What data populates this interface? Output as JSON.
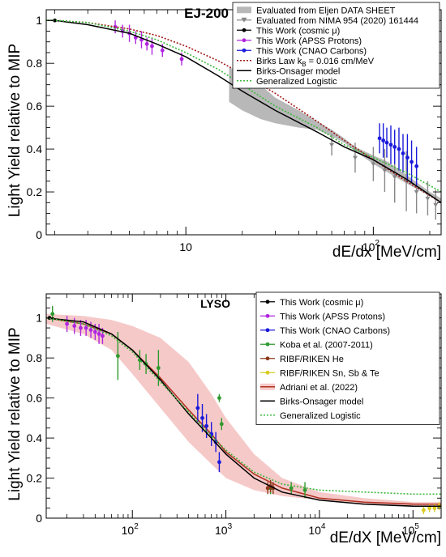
{
  "chart_data": [
    {
      "type": "line",
      "panel_tag": "EJ-200",
      "xlabel": "dE/dx [MeV/cm]",
      "ylabel": "Light Yield relative to MIP",
      "x_scale": "log",
      "xlim": [
        1.8,
        230
      ],
      "ylim": [
        0,
        1.05
      ],
      "x_ticks": [
        {
          "value": 10,
          "label": "10"
        },
        {
          "value": 100,
          "label": "10",
          "exp": "2"
        }
      ],
      "y_ticks": [
        {
          "value": 0,
          "label": "0"
        },
        {
          "value": 0.2,
          "label": "0.2"
        },
        {
          "value": 0.4,
          "label": "0.4"
        },
        {
          "value": 0.6,
          "label": "0.6"
        },
        {
          "value": 0.8,
          "label": "0.8"
        },
        {
          "value": 1,
          "label": "1"
        }
      ],
      "legend": {
        "position": "top-right",
        "entries": [
          {
            "label": "Evaluated from Eljen DATA SHEET",
            "style": "band",
            "color": "#b8b8b8"
          },
          {
            "label": "Evaluated from NIMA 954 (2020) 161444",
            "style": "triangle",
            "color": "#888888"
          },
          {
            "label": "This Work (cosmic μ)",
            "style": "marker",
            "color": "#000000"
          },
          {
            "label": "This Work (APSS Protons)",
            "style": "marker",
            "color": "#b026e0"
          },
          {
            "label": "This Work (CNAO Carbons)",
            "style": "marker",
            "color": "#1a1adb"
          },
          {
            "label": "Birks Law k",
            "sub": "B",
            "suffix": " = 0.016 cm/MeV",
            "style": "dotted",
            "color": "#a01818"
          },
          {
            "label": "Birks-Onsager model",
            "style": "line",
            "color": "#000000"
          },
          {
            "label": "Generalized Logistic",
            "style": "dotted",
            "color": "#3cb83c"
          }
        ]
      },
      "band": {
        "name": "Evaluated from Eljen DATA SHEET",
        "color": "#b8b8b8",
        "x": [
          17,
          20,
          25,
          30,
          40,
          50,
          60,
          70,
          80,
          100,
          120,
          150,
          200,
          230
        ],
        "y_low": [
          0.62,
          0.58,
          0.54,
          0.52,
          0.5,
          0.49,
          0.46,
          0.43,
          0.39,
          0.33,
          0.29,
          0.24,
          0.18,
          0.15
        ],
        "y_high": [
          0.78,
          0.76,
          0.7,
          0.64,
          0.58,
          0.53,
          0.49,
          0.45,
          0.41,
          0.37,
          0.34,
          0.28,
          0.2,
          0.17
        ]
      },
      "series": [
        {
          "name": "Evaluated from NIMA 954 (2020) 161444",
          "style": "triangles",
          "color": "#888888",
          "x": [
            60,
            80,
            100,
            115,
            130,
            150,
            170,
            195,
            215
          ],
          "y": [
            0.42,
            0.36,
            0.33,
            0.3,
            0.27,
            0.25,
            0.2,
            0.17,
            0.14
          ],
          "err": [
            0.05,
            0.07,
            0.08,
            0.1,
            0.12,
            0.14,
            0.1,
            0.08,
            0.07
          ]
        },
        {
          "name": "This Work (cosmic μ)",
          "style": "markers",
          "color": "#000000",
          "x": [
            2
          ],
          "y": [
            1.0
          ],
          "err": [
            0.005
          ]
        },
        {
          "name": "This Work (APSS Protons)",
          "style": "markers",
          "color": "#b026e0",
          "x": [
            4.2,
            4.6,
            5.0,
            5.4,
            5.8,
            6.2,
            6.6,
            7.5,
            9.5
          ],
          "y": [
            0.97,
            0.95,
            0.94,
            0.92,
            0.91,
            0.89,
            0.88,
            0.86,
            0.82
          ],
          "err": [
            0.03,
            0.03,
            0.04,
            0.03,
            0.04,
            0.03,
            0.04,
            0.03,
            0.03
          ]
        },
        {
          "name": "This Work (CNAO Carbons)",
          "style": "markers",
          "color": "#1a1adb",
          "x": [
            108,
            113,
            118,
            124,
            130,
            137,
            144,
            152,
            160,
            170
          ],
          "y": [
            0.45,
            0.44,
            0.43,
            0.42,
            0.41,
            0.4,
            0.38,
            0.36,
            0.34,
            0.32
          ],
          "err": [
            0.07,
            0.08,
            0.07,
            0.09,
            0.08,
            0.1,
            0.09,
            0.11,
            0.1,
            0.09
          ]
        },
        {
          "name": "Birks Law k",
          "style": "dotted",
          "color": "#a01818",
          "x": [
            1.8,
            2,
            3,
            5,
            7,
            10,
            15,
            20,
            30,
            50,
            70,
            100,
            150,
            230
          ],
          "y": [
            1.0,
            1.0,
            0.99,
            0.96,
            0.93,
            0.88,
            0.81,
            0.75,
            0.66,
            0.53,
            0.44,
            0.35,
            0.25,
            0.15
          ]
        },
        {
          "name": "Birks-Onsager model",
          "style": "line",
          "color": "#000000",
          "x": [
            1.8,
            2,
            3,
            5,
            7,
            10,
            15,
            20,
            30,
            50,
            70,
            100,
            150,
            230
          ],
          "y": [
            1.0,
            1.0,
            0.98,
            0.94,
            0.89,
            0.83,
            0.74,
            0.67,
            0.58,
            0.48,
            0.41,
            0.35,
            0.26,
            0.15
          ]
        },
        {
          "name": "Generalized Logistic",
          "style": "dotted",
          "color": "#3cb83c",
          "x": [
            1.8,
            2,
            3,
            5,
            7,
            10,
            15,
            20,
            30,
            50,
            70,
            100,
            150,
            230
          ],
          "y": [
            1.0,
            1.0,
            0.99,
            0.95,
            0.91,
            0.85,
            0.77,
            0.7,
            0.6,
            0.5,
            0.42,
            0.36,
            0.29,
            0.2
          ]
        }
      ]
    },
    {
      "type": "line",
      "panel_tag": "LYSO",
      "xlabel": "dE/dX [MeV/cm]",
      "ylabel": "Light Yield relative to MIP",
      "x_scale": "log",
      "xlim": [
        12,
        200000
      ],
      "ylim": [
        0,
        1.12
      ],
      "x_ticks": [
        {
          "value": 100,
          "label": "10",
          "exp": "2"
        },
        {
          "value": 1000,
          "label": "10",
          "exp": "3"
        },
        {
          "value": 10000,
          "label": "10",
          "exp": "4"
        },
        {
          "value": 100000,
          "label": "10",
          "exp": "5"
        }
      ],
      "y_ticks": [
        {
          "value": 0,
          "label": "0"
        },
        {
          "value": 0.2,
          "label": "0.2"
        },
        {
          "value": 0.4,
          "label": "0.4"
        },
        {
          "value": 0.6,
          "label": "0.6"
        },
        {
          "value": 0.8,
          "label": "0.8"
        },
        {
          "value": 1,
          "label": "1"
        }
      ],
      "legend": {
        "position": "top-right",
        "entries": [
          {
            "label": "This Work (cosmic μ)",
            "style": "marker",
            "color": "#000000"
          },
          {
            "label": "This Work (APSS Protons)",
            "style": "marker",
            "color": "#b026e0"
          },
          {
            "label": "This Work (CNAO Carbons)",
            "style": "marker",
            "color": "#1a1adb"
          },
          {
            "label": "Koba et al. (2007-2011)",
            "style": "marker",
            "color": "#2e9a2e"
          },
          {
            "label": "RIBF/RIKEN He",
            "style": "marker",
            "color": "#8b3a1a"
          },
          {
            "label": "RIBF/RIKEN Sn, Sb & Te",
            "style": "marker",
            "color": "#d8cc20"
          },
          {
            "label": "Adriani et al. (2022)",
            "style": "bandline",
            "color": "#f6c9c9"
          },
          {
            "label": "Birks-Onsager model",
            "style": "line",
            "color": "#000000"
          },
          {
            "label": "Generalized Logistic",
            "style": "dotted",
            "color": "#3cb83c"
          }
        ]
      },
      "band": {
        "name": "Adriani et al. (2022)",
        "color": "#f6c9c9",
        "x": [
          12,
          30,
          60,
          100,
          200,
          400,
          700,
          1000,
          2000,
          4000,
          10000,
          30000,
          100000,
          200000
        ],
        "y_low": [
          0.97,
          0.92,
          0.84,
          0.72,
          0.55,
          0.38,
          0.27,
          0.2,
          0.14,
          0.11,
          0.09,
          0.07,
          0.06,
          0.06
        ],
        "y_high": [
          1.02,
          1.01,
          0.99,
          0.96,
          0.9,
          0.78,
          0.62,
          0.5,
          0.32,
          0.2,
          0.13,
          0.1,
          0.08,
          0.08
        ]
      },
      "series": [
        {
          "name": "Adriani et al. (2022) central",
          "style": "line",
          "color": "#b03020",
          "x": [
            12,
            30,
            60,
            100,
            200,
            400,
            700,
            1000,
            2000,
            4000,
            10000,
            30000,
            100000,
            200000
          ],
          "y": [
            1.0,
            0.97,
            0.92,
            0.84,
            0.7,
            0.54,
            0.42,
            0.33,
            0.22,
            0.15,
            0.1,
            0.08,
            0.07,
            0.07
          ]
        },
        {
          "name": "This Work (cosmic μ)",
          "style": "markers",
          "color": "#000000",
          "x": [
            13
          ],
          "y": [
            1.0
          ],
          "err": [
            0.005
          ]
        },
        {
          "name": "This Work (APSS Protons)",
          "style": "markers",
          "color": "#b026e0",
          "x": [
            20,
            24,
            28,
            32,
            36,
            40,
            44,
            48
          ],
          "y": [
            0.97,
            0.96,
            0.95,
            0.95,
            0.94,
            0.93,
            0.92,
            0.91
          ],
          "err": [
            0.04,
            0.04,
            0.04,
            0.04,
            0.04,
            0.04,
            0.05,
            0.04
          ]
        },
        {
          "name": "This Work (CNAO Carbons)",
          "style": "markers",
          "color": "#1a1adb",
          "x": [
            500,
            560,
            620,
            700,
            780,
            850
          ],
          "y": [
            0.55,
            0.5,
            0.46,
            0.42,
            0.38,
            0.28
          ],
          "err": [
            0.07,
            0.07,
            0.06,
            0.06,
            0.05,
            0.05
          ]
        },
        {
          "name": "Koba et al. (2007-2011)",
          "style": "markers",
          "color": "#2e9a2e",
          "x": [
            14,
            70,
            120,
            140,
            190,
            850,
            900,
            3000,
            5000,
            7000
          ],
          "y": [
            1.02,
            0.81,
            0.79,
            0.77,
            0.75,
            0.6,
            0.47,
            0.15,
            0.15,
            0.14
          ],
          "err": [
            0.04,
            0.12,
            0.05,
            0.05,
            0.09,
            0.02,
            0.03,
            0.03,
            0.03,
            0.04
          ]
        },
        {
          "name": "RIBF/RIKEN He",
          "style": "markers",
          "color": "#8b3a1a",
          "x": [
            2800,
            3000,
            3200
          ],
          "y": [
            0.15,
            0.16,
            0.15
          ],
          "err": [
            0.03,
            0.03,
            0.03
          ]
        },
        {
          "name": "RIBF/RIKEN Sn, Sb & Te",
          "style": "markers",
          "color": "#d8cc20",
          "x": [
            130000,
            150000,
            170000,
            190000
          ],
          "y": [
            0.04,
            0.05,
            0.05,
            0.06
          ],
          "err": [
            0.02,
            0.02,
            0.02,
            0.02
          ]
        },
        {
          "name": "Birks-Onsager model",
          "style": "line",
          "color": "#000000",
          "x": [
            12,
            30,
            60,
            100,
            200,
            400,
            700,
            1000,
            2000,
            4000,
            10000,
            30000,
            100000,
            200000
          ],
          "y": [
            1.0,
            0.98,
            0.92,
            0.84,
            0.69,
            0.52,
            0.4,
            0.32,
            0.2,
            0.13,
            0.09,
            0.07,
            0.06,
            0.06
          ]
        },
        {
          "name": "Generalized Logistic",
          "style": "dotted",
          "color": "#3cb83c",
          "x": [
            12,
            30,
            60,
            100,
            200,
            400,
            700,
            1000,
            2000,
            4000,
            10000,
            30000,
            100000,
            200000
          ],
          "y": [
            1.0,
            0.97,
            0.91,
            0.83,
            0.68,
            0.53,
            0.41,
            0.34,
            0.23,
            0.17,
            0.14,
            0.13,
            0.12,
            0.12
          ]
        }
      ]
    }
  ]
}
